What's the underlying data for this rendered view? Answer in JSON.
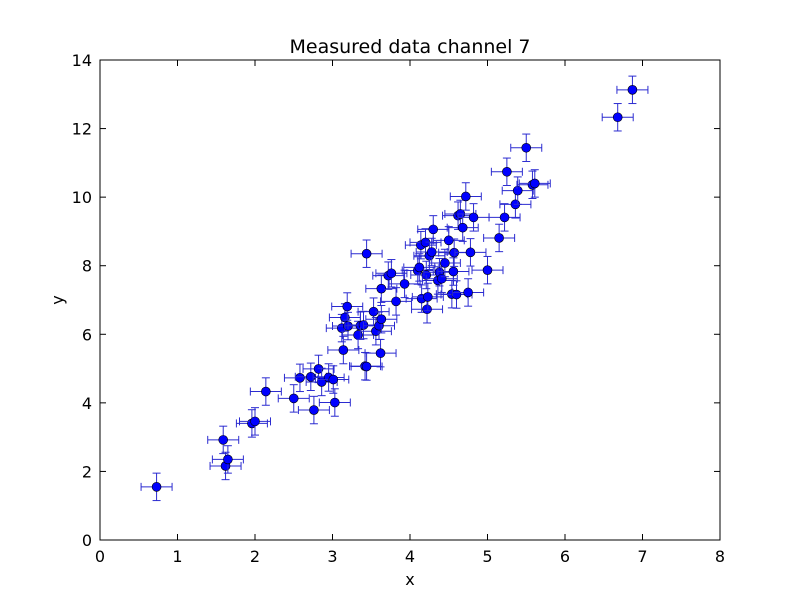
{
  "chart_data": {
    "type": "scatter",
    "title": "Measured data channel 7",
    "xlabel": "x",
    "ylabel": "y",
    "xlim": [
      0,
      8
    ],
    "ylim": [
      0,
      14
    ],
    "xticks": [
      0,
      1,
      2,
      3,
      4,
      5,
      6,
      7,
      8
    ],
    "yticks": [
      0,
      2,
      4,
      6,
      8,
      10,
      12,
      14
    ],
    "grid": false,
    "error_bars": {
      "x": 0.2,
      "y": 0.4
    },
    "colors": {
      "marker": "#0000ff",
      "errorbar": "#2b2bd0"
    },
    "points": [
      [
        0.73,
        1.55
      ],
      [
        1.59,
        2.92
      ],
      [
        1.62,
        2.16
      ],
      [
        1.65,
        2.35
      ],
      [
        1.96,
        3.4
      ],
      [
        2.0,
        3.46
      ],
      [
        2.14,
        4.33
      ],
      [
        2.5,
        4.13
      ],
      [
        2.58,
        4.73
      ],
      [
        2.72,
        4.76
      ],
      [
        2.76,
        3.79
      ],
      [
        2.82,
        4.99
      ],
      [
        2.86,
        4.61
      ],
      [
        2.95,
        4.74
      ],
      [
        3.01,
        4.68
      ],
      [
        3.03,
        4.01
      ],
      [
        3.12,
        6.18
      ],
      [
        3.14,
        5.54
      ],
      [
        3.16,
        6.49
      ],
      [
        3.19,
        6.81
      ],
      [
        3.2,
        6.24
      ],
      [
        3.33,
        5.98
      ],
      [
        3.36,
        6.25
      ],
      [
        3.4,
        6.27
      ],
      [
        3.42,
        5.07
      ],
      [
        3.44,
        5.06
      ],
      [
        3.44,
        8.35
      ],
      [
        3.53,
        6.66
      ],
      [
        3.56,
        6.09
      ],
      [
        3.6,
        6.25
      ],
      [
        3.62,
        5.45
      ],
      [
        3.63,
        6.44
      ],
      [
        3.63,
        7.33
      ],
      [
        3.72,
        7.71
      ],
      [
        3.76,
        7.78
      ],
      [
        3.82,
        6.96
      ],
      [
        3.93,
        7.47
      ],
      [
        4.1,
        7.86
      ],
      [
        4.12,
        7.95
      ],
      [
        4.14,
        8.6
      ],
      [
        4.15,
        7.04
      ],
      [
        4.2,
        8.68
      ],
      [
        4.21,
        7.73
      ],
      [
        4.22,
        6.73
      ],
      [
        4.23,
        7.09
      ],
      [
        4.25,
        8.29
      ],
      [
        4.28,
        8.4
      ],
      [
        4.3,
        9.06
      ],
      [
        4.36,
        7.57
      ],
      [
        4.38,
        7.81
      ],
      [
        4.41,
        7.62
      ],
      [
        4.45,
        8.08
      ],
      [
        4.5,
        8.74
      ],
      [
        4.54,
        7.17
      ],
      [
        4.56,
        7.83
      ],
      [
        4.57,
        8.38
      ],
      [
        4.6,
        7.16
      ],
      [
        4.62,
        9.46
      ],
      [
        4.65,
        9.51
      ],
      [
        4.68,
        9.11
      ],
      [
        4.72,
        10.02
      ],
      [
        4.75,
        7.22
      ],
      [
        4.78,
        8.39
      ],
      [
        4.82,
        9.41
      ],
      [
        5.0,
        7.87
      ],
      [
        5.15,
        8.81
      ],
      [
        5.22,
        9.41
      ],
      [
        5.25,
        10.74
      ],
      [
        5.36,
        9.79
      ],
      [
        5.39,
        10.19
      ],
      [
        5.5,
        11.44
      ],
      [
        5.58,
        10.36
      ],
      [
        5.61,
        10.4
      ],
      [
        6.68,
        12.33
      ],
      [
        6.87,
        13.13
      ]
    ]
  }
}
